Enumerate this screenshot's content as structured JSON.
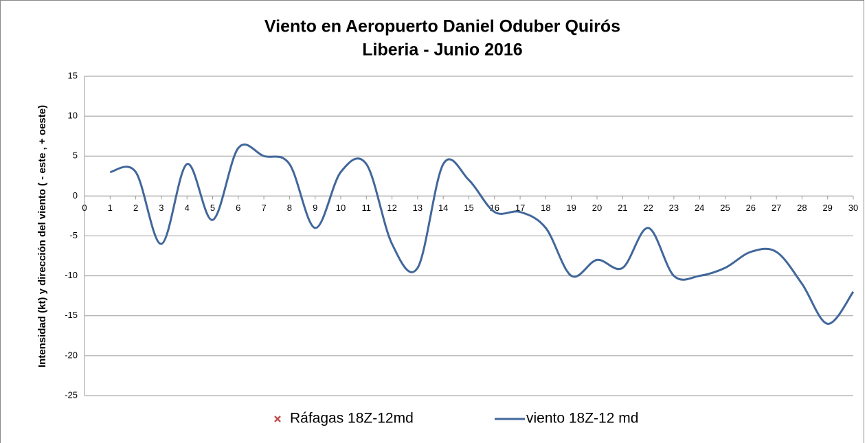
{
  "chart_data": {
    "type": "line",
    "title": "Viento en Aeropuerto Daniel Oduber Quirós",
    "subtitle": "Liberia - Junio 2016",
    "y_label": "Intensidad (kt) y dirección del viento ( - este , + oeste)",
    "x": [
      1,
      2,
      3,
      4,
      5,
      6,
      7,
      8,
      9,
      10,
      11,
      12,
      13,
      14,
      15,
      16,
      17,
      18,
      19,
      20,
      21,
      22,
      23,
      24,
      25,
      26,
      27,
      28,
      29,
      30
    ],
    "series": [
      {
        "name": "Ráfagas 18Z-12md",
        "color": "#c0504d",
        "marker": "x",
        "values": [
          null,
          null,
          null,
          null,
          null,
          null,
          null,
          null,
          null,
          null,
          null,
          null,
          null,
          null,
          null,
          null,
          null,
          null,
          null,
          null,
          null,
          null,
          null,
          null,
          null,
          null,
          null,
          null,
          null,
          null
        ]
      },
      {
        "name": "viento 18Z-12 md",
        "color": "#41679a",
        "smooth": true,
        "values": [
          3,
          3,
          -6,
          4,
          -3,
          6,
          5,
          4,
          -4,
          3,
          4,
          -6,
          -9,
          4,
          2,
          -2,
          -2,
          -4,
          -10,
          -8,
          -9,
          -4,
          -10,
          -10,
          -9,
          -7,
          -7,
          -11,
          -16,
          -12
        ]
      }
    ],
    "xlim": [
      0,
      30
    ],
    "xticks": [
      0,
      1,
      2,
      3,
      4,
      5,
      6,
      7,
      8,
      9,
      10,
      11,
      12,
      13,
      14,
      15,
      16,
      17,
      18,
      19,
      20,
      21,
      22,
      23,
      24,
      25,
      26,
      27,
      28,
      29,
      30
    ],
    "ylim": [
      -25,
      15
    ],
    "yticks": [
      -25,
      -20,
      -15,
      -10,
      -5,
      0,
      5,
      10,
      15
    ],
    "grid": true,
    "legend": "bottom"
  }
}
